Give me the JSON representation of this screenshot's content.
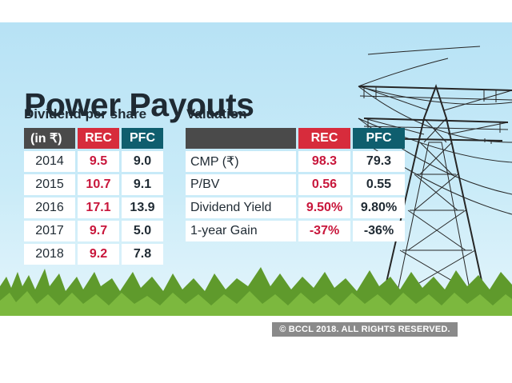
{
  "title": "Power Payouts",
  "dividend": {
    "subtitle": "Dividend per share",
    "headers": [
      "(in ₹)",
      "REC",
      "PFC"
    ],
    "rows": [
      {
        "year": "2014",
        "rec": "9.5",
        "pfc": "9.0"
      },
      {
        "year": "2015",
        "rec": "10.7",
        "pfc": "9.1"
      },
      {
        "year": "2016",
        "rec": "17.1",
        "pfc": "13.9"
      },
      {
        "year": "2017",
        "rec": "9.7",
        "pfc": "5.0"
      },
      {
        "year": "2018",
        "rec": "9.2",
        "pfc": "7.8"
      }
    ]
  },
  "valuation": {
    "subtitle": "Valuation",
    "headers": [
      "",
      "REC",
      "PFC"
    ],
    "rows": [
      {
        "label": "CMP (₹)",
        "rec": "98.3",
        "pfc": "79.3"
      },
      {
        "label": "P/BV",
        "rec": "0.56",
        "pfc": "0.55"
      },
      {
        "label": "Dividend Yield",
        "rec": "9.50%",
        "pfc": "9.80%"
      },
      {
        "label": "1-year Gain",
        "rec": "-37%",
        "pfc": "-36%"
      }
    ]
  },
  "credit": "© BCCL 2018. ALL RIGHTS RESERVED.",
  "colors": {
    "rec_header": "#d72c3c",
    "pfc_header": "#0f5e6e",
    "label_header": "#4a4a4a",
    "rec_value": "#c8163b",
    "sky": "#b7e2f5",
    "grass": "#5f9a2c"
  },
  "chart_data": [
    {
      "type": "table",
      "title": "Dividend per share",
      "columns": [
        "(in ₹)",
        "REC",
        "PFC"
      ],
      "rows": [
        [
          "2014",
          9.5,
          9.0
        ],
        [
          "2015",
          10.7,
          9.1
        ],
        [
          "2016",
          17.1,
          13.9
        ],
        [
          "2017",
          9.7,
          5.0
        ],
        [
          "2018",
          9.2,
          7.8
        ]
      ]
    },
    {
      "type": "table",
      "title": "Valuation",
      "columns": [
        "",
        "REC",
        "PFC"
      ],
      "rows": [
        [
          "CMP (₹)",
          98.3,
          79.3
        ],
        [
          "P/BV",
          0.56,
          0.55
        ],
        [
          "Dividend Yield",
          "9.50%",
          "9.80%"
        ],
        [
          "1-year Gain",
          "-37%",
          "-36%"
        ]
      ]
    }
  ]
}
